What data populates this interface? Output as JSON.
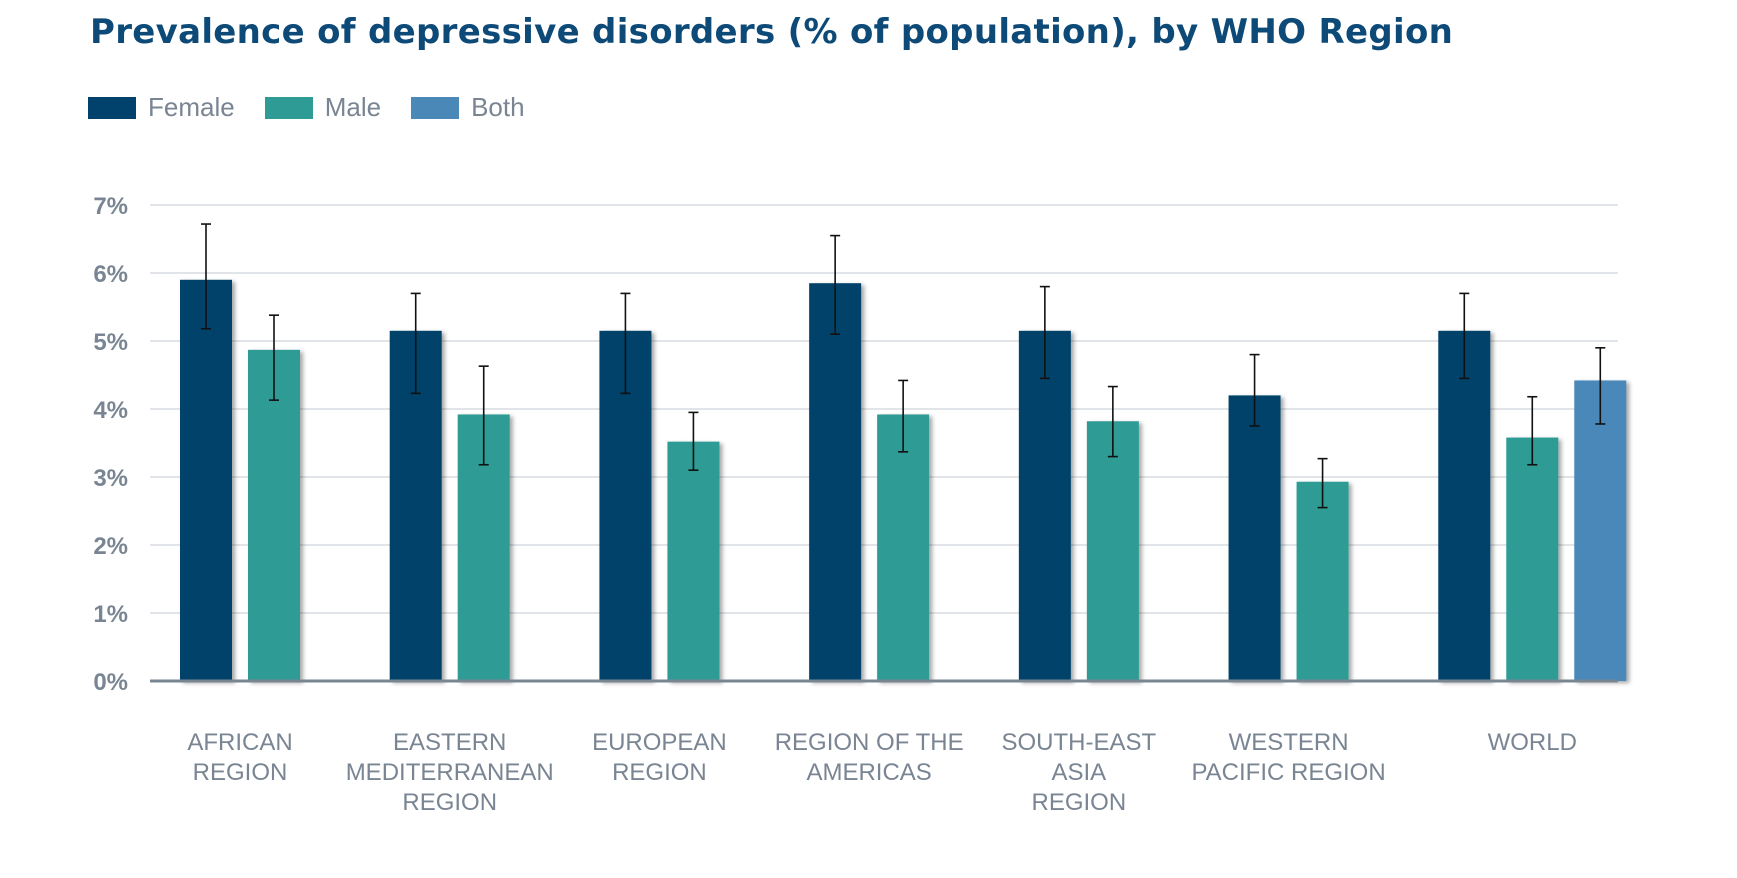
{
  "chart_data": {
    "type": "bar",
    "title": "Prevalence of depressive disorders (% of population), by WHO Region",
    "ylim": [
      0,
      7
    ],
    "yticks": [
      "0%",
      "1%",
      "2%",
      "3%",
      "4%",
      "5%",
      "6%",
      "7%"
    ],
    "grid": true,
    "legend_position": "top-left",
    "categories": [
      [
        "AFRICAN",
        "REGION"
      ],
      [
        "EASTERN",
        "MEDITERRANEAN",
        "REGION"
      ],
      [
        "EUROPEAN",
        "REGION"
      ],
      [
        "REGION OF THE",
        "AMERICAS"
      ],
      [
        "SOUTH-EAST",
        "ASIA",
        "REGION"
      ],
      [
        "WESTERN",
        "PACIFIC REGION"
      ],
      [
        "WORLD"
      ]
    ],
    "series": [
      {
        "name": "Female",
        "color": "#00426b",
        "values": [
          5.9,
          5.15,
          5.15,
          5.85,
          5.15,
          4.2,
          5.15
        ],
        "error_low": [
          5.18,
          4.23,
          4.23,
          5.1,
          4.45,
          3.75,
          4.45
        ],
        "error_high": [
          6.72,
          5.7,
          5.7,
          6.55,
          5.8,
          4.8,
          5.7
        ]
      },
      {
        "name": "Male",
        "color": "#2e9b94",
        "values": [
          4.87,
          3.92,
          3.52,
          3.92,
          3.82,
          2.93,
          3.58
        ],
        "error_low": [
          4.13,
          3.18,
          3.1,
          3.37,
          3.3,
          2.55,
          3.18
        ],
        "error_high": [
          5.38,
          4.63,
          3.95,
          4.42,
          4.33,
          3.27,
          4.18
        ]
      },
      {
        "name": "Both",
        "color": "#4a88b8",
        "values": [
          null,
          null,
          null,
          null,
          null,
          null,
          4.42
        ],
        "error_low": [
          null,
          null,
          null,
          null,
          null,
          null,
          3.78
        ],
        "error_high": [
          null,
          null,
          null,
          null,
          null,
          null,
          4.9
        ]
      }
    ]
  }
}
